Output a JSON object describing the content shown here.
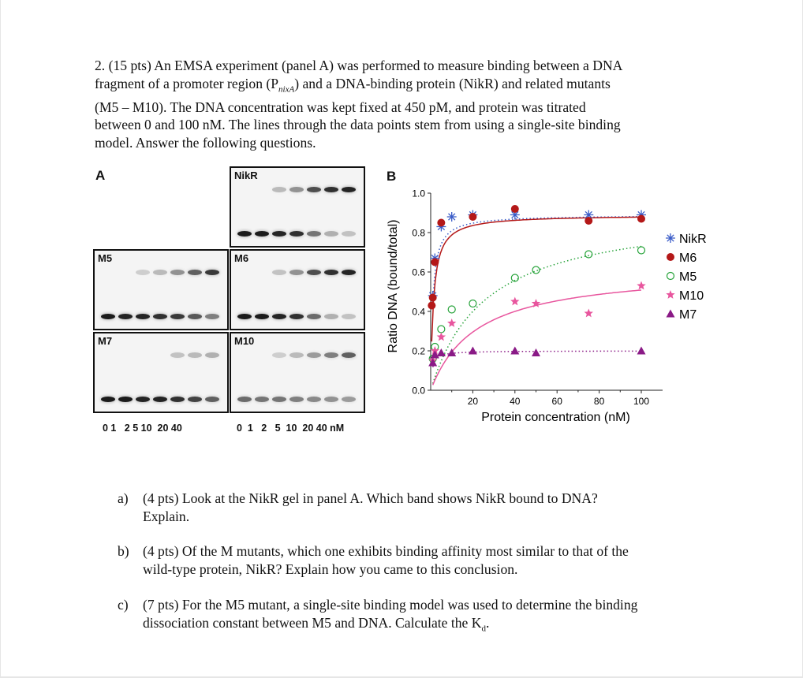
{
  "problem": {
    "lines": [
      "2. (15 pts) An EMSA experiment (panel A) was performed to measure binding between a DNA",
      "fragment of a promoter region (P",
      "nixA",
      ") and a DNA-binding protein (NikR) and related mutants",
      "(M5 – M10). The DNA concentration was kept fixed at 450 pM, and protein was titrated",
      "between 0 and 100 nM. The lines through the data points stem from using a single-site binding",
      "model. Answer the following questions."
    ]
  },
  "panel_a": {
    "letter": "A",
    "gels": [
      "NikR",
      "M5",
      "M6",
      "M7",
      "M10"
    ],
    "lanes_left": "0 1   2 5 10  20 40",
    "lanes_right": "0  1   2   5  10  20 40 nM"
  },
  "panel_b": {
    "letter": "B"
  },
  "chart_data": {
    "type": "scatter",
    "xlabel": "Protein concentration (nM)",
    "ylabel": "Ratio DNA (bound/total)",
    "xlim": [
      0,
      100
    ],
    "ylim": [
      0,
      1.0
    ],
    "x_ticks": [
      20,
      40,
      60,
      80,
      100
    ],
    "y_ticks": [
      "0.0",
      "0.2",
      "0.4",
      "0.6",
      "0.8",
      "1.0"
    ],
    "legend_position": "right",
    "series": [
      {
        "name": "NikR",
        "marker": "asterisk",
        "color": "#3a5cc8",
        "line": "dotted",
        "x": [
          1,
          2,
          5,
          10,
          20,
          40,
          75,
          100
        ],
        "y": [
          0.48,
          0.67,
          0.83,
          0.88,
          0.89,
          0.89,
          0.89,
          0.89
        ]
      },
      {
        "name": "M6",
        "marker": "dot",
        "color": "#b41818",
        "line": "solid",
        "x": [
          0.5,
          1,
          2,
          5,
          20,
          40,
          75,
          100
        ],
        "y": [
          0.43,
          0.47,
          0.65,
          0.85,
          0.88,
          0.92,
          0.86,
          0.87
        ]
      },
      {
        "name": "M5",
        "marker": "circle",
        "color": "#27a33a",
        "line": "dotted",
        "x": [
          1,
          2,
          5,
          10,
          20,
          40,
          50,
          75,
          100
        ],
        "y": [
          0.16,
          0.22,
          0.31,
          0.41,
          0.44,
          0.57,
          0.61,
          0.69,
          0.71
        ]
      },
      {
        "name": "M10",
        "marker": "star",
        "color": "#e8569e",
        "line": "solid",
        "x": [
          1,
          2,
          5,
          10,
          40,
          50,
          75,
          100
        ],
        "y": [
          0.15,
          0.2,
          0.27,
          0.34,
          0.45,
          0.44,
          0.39,
          0.53
        ]
      },
      {
        "name": "M7",
        "marker": "triangle",
        "color": "#8a1a86",
        "line": "dotted",
        "x": [
          1,
          2,
          5,
          10,
          20,
          40,
          50,
          100
        ],
        "y": [
          0.14,
          0.18,
          0.19,
          0.19,
          0.2,
          0.2,
          0.19,
          0.2
        ]
      }
    ]
  },
  "questions": [
    {
      "tag": "a)",
      "line1": "(4 pts) Look at the NikR gel in panel A. Which band shows NikR bound to DNA?",
      "line2": "Explain."
    },
    {
      "tag": "b)",
      "line1": "(4 pts) Of the M mutants, which one exhibits binding affinity most similar to that of the",
      "line2": "wild-type protein, NikR? Explain how you came to this conclusion."
    },
    {
      "tag": "c)",
      "line1": "(7 pts) For the M5 mutant, a single-site binding model was used to determine the binding",
      "line2": "dissociation constant between M5 and DNA. Calculate the K",
      "sub": "d",
      "end": "."
    }
  ]
}
